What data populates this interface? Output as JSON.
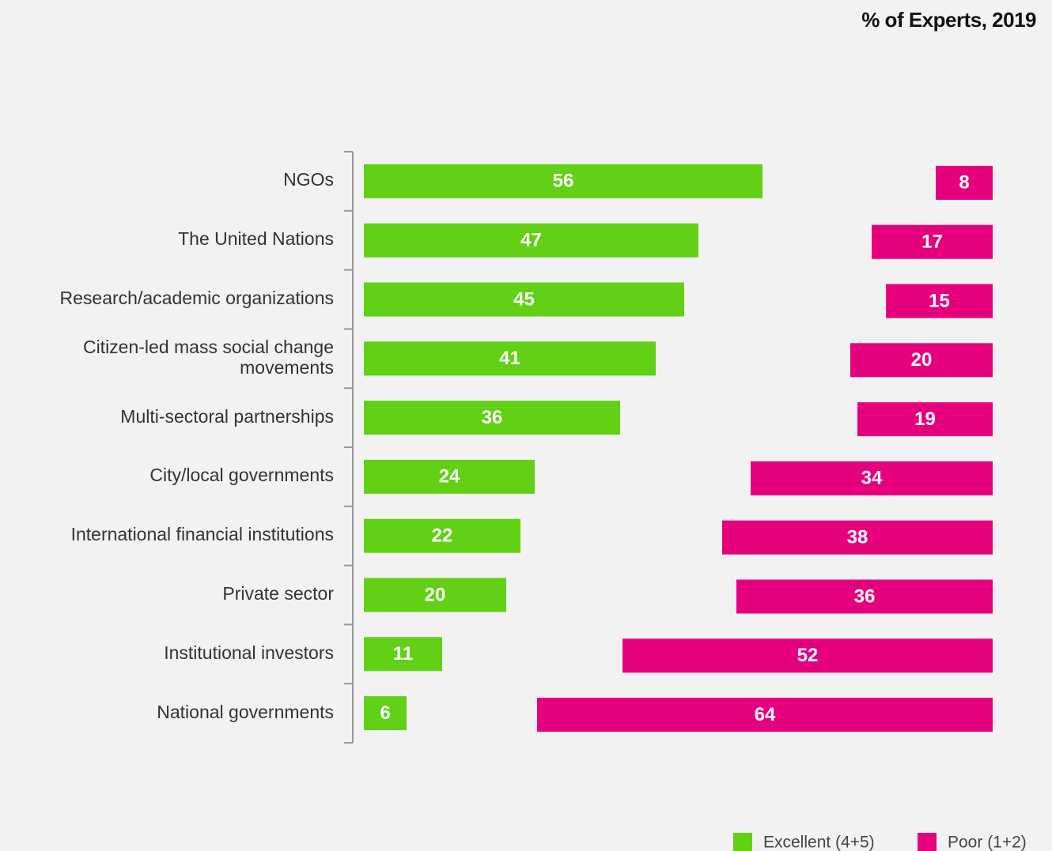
{
  "chart_data": {
    "type": "diverging-bar",
    "title": "% of Experts, 2019",
    "categories": [
      "NGOs",
      "The United Nations",
      "Research/academic organizations",
      "Citizen-led mass social change movements",
      "Multi-sectoral partnerships",
      "City/local governments",
      "International financial institutions",
      "Private sector",
      "Institutional investors",
      "National governments"
    ],
    "series": [
      {
        "name": "Excellent (4+5)",
        "color": "#62d015",
        "values": [
          56,
          47,
          45,
          41,
          36,
          24,
          22,
          20,
          11,
          6
        ]
      },
      {
        "name": "Poor (1+2)",
        "color": "#e6007e",
        "values": [
          8,
          17,
          15,
          20,
          19,
          34,
          38,
          36,
          52,
          64
        ]
      }
    ]
  }
}
